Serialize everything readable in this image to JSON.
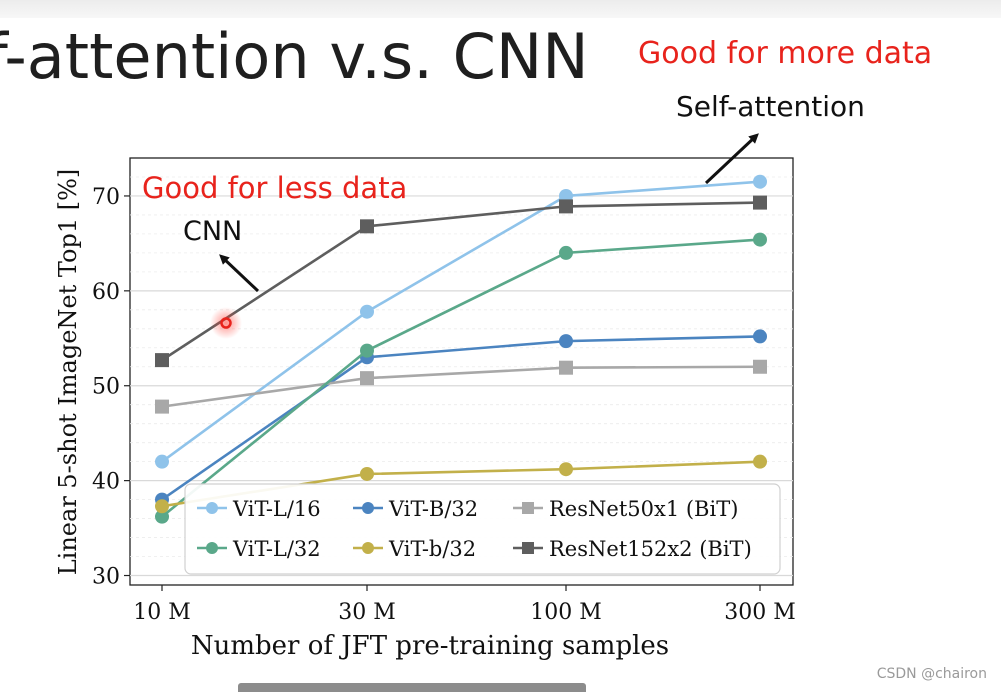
{
  "slide": {
    "title": "f-attention v.s. CNN",
    "note_more_data": "Good for more data",
    "note_less_data": "Good for less data",
    "label_self_attention": "Self-attention",
    "label_cnn": "CNN",
    "watermark": "CSDN @chairon"
  },
  "chart_data": {
    "type": "line",
    "title": "",
    "xlabel": "Number of JFT pre-training samples",
    "ylabel": "Linear 5-shot ImageNet Top1 [%]",
    "categories": [
      "10 M",
      "30 M",
      "100 M",
      "300 M"
    ],
    "ylim": [
      29,
      74
    ],
    "yticks": [
      30,
      40,
      50,
      60,
      70
    ],
    "grid": true,
    "legend_position": "bottom-right",
    "series": [
      {
        "name": "ViT-L/16",
        "color": "#8fc3ea",
        "marker": "circle",
        "values": [
          42.0,
          57.8,
          70.0,
          71.5
        ]
      },
      {
        "name": "ViT-B/32",
        "color": "#4b84c0",
        "marker": "circle",
        "values": [
          38.0,
          53.0,
          54.7,
          55.2
        ]
      },
      {
        "name": "ResNet50x1 (BiT)",
        "color": "#a8a8a8",
        "marker": "square",
        "values": [
          47.8,
          50.8,
          51.9,
          52.0
        ]
      },
      {
        "name": "ViT-L/32",
        "color": "#5aa88a",
        "marker": "circle",
        "values": [
          36.2,
          53.7,
          64.0,
          65.4
        ]
      },
      {
        "name": "ViT-b/32",
        "color": "#c2b04a",
        "marker": "circle",
        "values": [
          37.3,
          40.7,
          41.2,
          42.0
        ]
      },
      {
        "name": "ResNet152x2 (BiT)",
        "color": "#5e5e5e",
        "marker": "square",
        "values": [
          52.7,
          66.8,
          68.9,
          69.3
        ]
      }
    ]
  }
}
